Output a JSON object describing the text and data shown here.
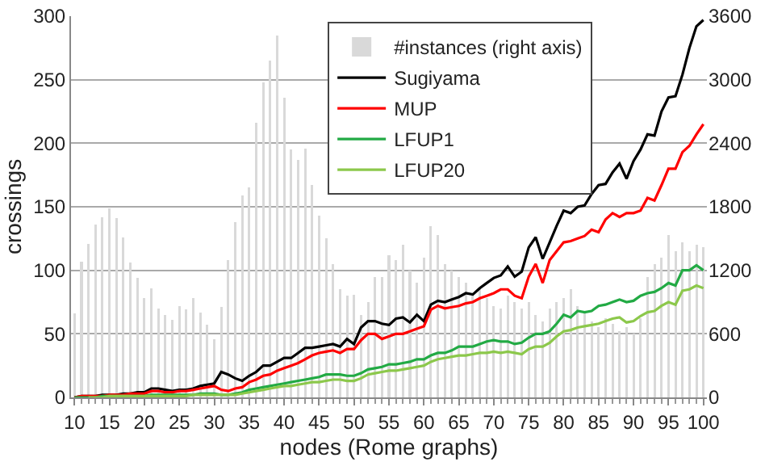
{
  "chart_data": {
    "type": "line",
    "xlabel": "nodes (Rome graphs)",
    "ylabel": "crossings",
    "x": [
      10,
      11,
      12,
      13,
      14,
      15,
      16,
      17,
      18,
      19,
      20,
      21,
      22,
      23,
      24,
      25,
      26,
      27,
      28,
      29,
      30,
      31,
      32,
      33,
      34,
      35,
      36,
      37,
      38,
      39,
      40,
      41,
      42,
      43,
      44,
      45,
      46,
      47,
      48,
      49,
      50,
      51,
      52,
      53,
      54,
      55,
      56,
      57,
      58,
      59,
      60,
      61,
      62,
      63,
      64,
      65,
      66,
      67,
      68,
      69,
      70,
      71,
      72,
      73,
      74,
      75,
      76,
      77,
      78,
      79,
      80,
      81,
      82,
      83,
      84,
      85,
      86,
      87,
      88,
      89,
      90,
      91,
      92,
      93,
      94,
      95,
      96,
      97,
      98,
      99,
      100
    ],
    "xlim": [
      9.5,
      100.5
    ],
    "xticks": [
      10,
      15,
      20,
      25,
      30,
      35,
      40,
      45,
      50,
      55,
      60,
      65,
      70,
      75,
      80,
      85,
      90,
      95,
      100
    ],
    "ylim": [
      0,
      300
    ],
    "yticks": [
      0,
      50,
      100,
      150,
      200,
      250,
      300
    ],
    "y2lim": [
      0,
      3600
    ],
    "y2ticks": [
      0,
      600,
      1200,
      1800,
      2400,
      3000,
      3600
    ],
    "grid": "y",
    "legend": "top right",
    "series": [
      {
        "name": "#instances (right axis)",
        "type": "bar",
        "axis": "y2",
        "color": "#d9d9d9",
        "values": [
          792,
          1284,
          1452,
          1632,
          1704,
          1788,
          1692,
          1512,
          1272,
          1128,
          936,
          1032,
          840,
          780,
          732,
          864,
          828,
          936,
          804,
          684,
          552,
          852,
          1296,
          1656,
          1908,
          1980,
          2592,
          2976,
          3180,
          3420,
          2832,
          2340,
          2244,
          2352,
          2004,
          1716,
          1500,
          1260,
          1020,
          960,
          972,
          780,
          900,
          1140,
          1140,
          1344,
          1296,
          1440,
          1200,
          1080,
          1320,
          1620,
          1536,
          1260,
          1200,
          1140,
          1080,
          960,
          1020,
          936,
          864,
          840,
          960,
          900,
          840,
          900,
          780,
          720,
          840,
          900,
          936,
          1020,
          864,
          816,
          720,
          660,
          744,
          696,
          624,
          660,
          600,
          744,
          1140,
          1260,
          1320,
          1536,
          1380,
          1464,
          1380,
          1440,
          1416
        ]
      },
      {
        "name": "Sugiyama",
        "color": "#000000",
        "values": [
          0,
          1,
          1,
          1,
          2,
          2,
          2,
          3,
          3,
          4,
          4,
          7,
          7,
          6,
          5,
          6,
          6,
          7,
          9,
          10,
          11,
          20,
          18,
          15,
          13,
          17,
          20,
          25,
          25,
          28,
          31,
          31,
          35,
          39,
          39,
          40,
          41,
          42,
          40,
          46,
          42,
          55,
          60,
          60,
          58,
          57,
          62,
          63,
          59,
          65,
          60,
          73,
          76,
          75,
          77,
          79,
          82,
          81,
          86,
          90,
          94,
          96,
          103,
          95,
          99,
          118,
          126,
          109,
          122,
          135,
          147,
          145,
          150,
          151,
          160,
          167,
          168,
          177,
          184,
          172,
          186,
          195,
          207,
          206,
          225,
          236,
          237,
          254,
          275,
          292,
          297
        ]
      },
      {
        "name": "MUP",
        "color": "#ff0000",
        "values": [
          0,
          1,
          1,
          1,
          1,
          2,
          2,
          2,
          3,
          3,
          3,
          5,
          5,
          4,
          4,
          5,
          5,
          6,
          7,
          8,
          9,
          6,
          5,
          7,
          8,
          12,
          14,
          17,
          18,
          21,
          23,
          25,
          27,
          30,
          33,
          35,
          36,
          37,
          35,
          38,
          38,
          45,
          50,
          50,
          46,
          48,
          50,
          50,
          52,
          54,
          56,
          69,
          72,
          70,
          71,
          72,
          74,
          75,
          78,
          80,
          82,
          85,
          85,
          80,
          78,
          95,
          105,
          90,
          108,
          115,
          122,
          123,
          125,
          127,
          132,
          130,
          140,
          145,
          142,
          145,
          145,
          147,
          157,
          155,
          167,
          180,
          180,
          193,
          198,
          207,
          215
        ]
      },
      {
        "name": "LFUP1",
        "color": "#22aa44",
        "values": [
          0,
          0,
          0,
          0,
          1,
          1,
          1,
          1,
          1,
          1,
          1,
          2,
          2,
          2,
          2,
          2,
          2,
          2,
          3,
          3,
          3,
          2,
          2,
          3,
          4,
          6,
          7,
          8,
          9,
          10,
          11,
          12,
          13,
          14,
          15,
          16,
          18,
          18,
          18,
          17,
          17,
          19,
          22,
          23,
          24,
          26,
          26,
          27,
          28,
          30,
          30,
          33,
          35,
          35,
          37,
          40,
          40,
          40,
          42,
          44,
          45,
          44,
          44,
          42,
          43,
          47,
          50,
          50,
          52,
          58,
          65,
          63,
          68,
          67,
          68,
          72,
          73,
          75,
          77,
          75,
          76,
          80,
          82,
          83,
          86,
          90,
          88,
          100,
          100,
          104,
          100
        ]
      },
      {
        "name": "LFUP20",
        "color": "#8cc84b",
        "values": [
          null,
          null,
          0,
          0,
          0,
          1,
          1,
          1,
          1,
          1,
          1,
          1,
          1,
          1,
          1,
          1,
          1,
          2,
          2,
          2,
          2,
          2,
          2,
          2,
          3,
          4,
          5,
          6,
          7,
          8,
          9,
          9,
          10,
          11,
          12,
          12,
          13,
          14,
          14,
          13,
          13,
          15,
          18,
          19,
          20,
          21,
          21,
          22,
          23,
          24,
          25,
          28,
          30,
          31,
          32,
          33,
          33,
          34,
          35,
          35,
          36,
          35,
          36,
          35,
          34,
          38,
          40,
          40,
          43,
          48,
          52,
          53,
          55,
          56,
          57,
          58,
          60,
          62,
          63,
          59,
          60,
          64,
          67,
          68,
          72,
          75,
          73,
          84,
          85,
          88,
          86
        ]
      }
    ]
  }
}
